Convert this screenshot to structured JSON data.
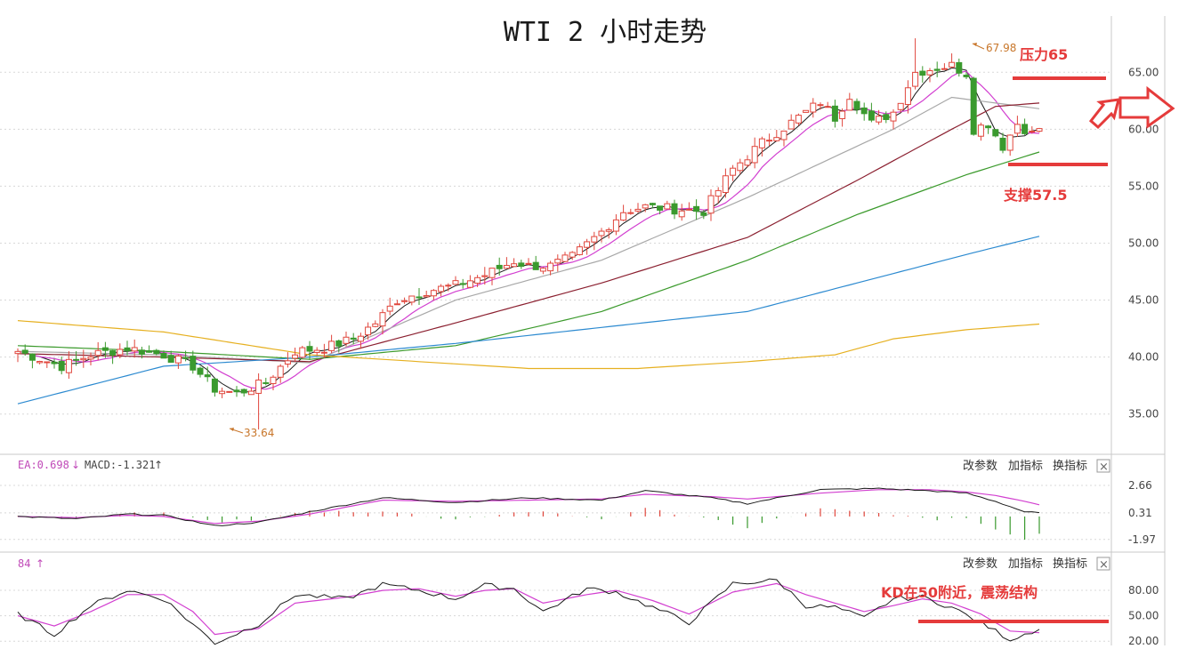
{
  "title": "WTI 2 小时走势",
  "price_panel": {
    "y_ticks": [
      "65.00",
      "60.00",
      "55.00",
      "50.00",
      "45.00",
      "40.00",
      "35.00"
    ],
    "y_tick_values": [
      65,
      60,
      55,
      50,
      45,
      40,
      35
    ],
    "y_range": [
      31.7,
      69.0
    ],
    "high_label": "67.98",
    "low_label": "33.64",
    "annotations": {
      "resistance": "压力65",
      "support": "支撑57.5"
    },
    "resistance_level": 65,
    "support_level": 57.5
  },
  "macd_panel": {
    "header_left_a": "EA:0.698",
    "header_arrow_down": "↓",
    "header_left_b": "MACD:-1.321",
    "header_arrow_up": "↑",
    "y_ticks": [
      "2.66",
      "0.31",
      "-1.97"
    ],
    "y_tick_values": [
      2.66,
      0.31,
      -1.97
    ],
    "y_range": [
      -2.9,
      3.5
    ]
  },
  "kd_panel": {
    "header_left": "84",
    "header_arrow_up": "↑",
    "y_ticks": [
      "80.00",
      "50.00",
      "20.00"
    ],
    "y_tick_values": [
      80,
      50,
      20
    ],
    "y_range": [
      15,
      100
    ],
    "annotation": "KD在50附近，震荡结构",
    "level": 50
  },
  "panel_tools": {
    "change_params": "改参数",
    "add_indicator": "加指标",
    "switch_indicator": "换指标",
    "close_symbol": "×"
  },
  "colors": {
    "up": "#e0463c",
    "down": "#3a9a2e",
    "annotation": "#e53b3b",
    "ma5": "#1a1a1a",
    "ma10": "#d23fd0",
    "ma20": "#a8a8a8",
    "ma40": "#8b2030",
    "ma60": "#3b9a2c",
    "ma120": "#2c8ad0",
    "ma250": "#e6b020",
    "grid": "#d8d8d8",
    "axis_text": "#444444"
  },
  "chart_data": [
    {
      "type": "candlestick",
      "title": "WTI 2 小时走势",
      "ylim": [
        31.7,
        69.0
      ],
      "y_ticks": [
        35,
        40,
        45,
        50,
        55,
        60,
        65
      ],
      "grid": true,
      "close_anchors": [
        [
          0,
          40.5
        ],
        [
          6,
          39.2
        ],
        [
          10,
          40.2
        ],
        [
          15,
          40.8
        ],
        [
          20,
          40.2
        ],
        [
          24,
          39.2
        ],
        [
          27,
          37.2
        ],
        [
          30,
          36.8
        ],
        [
          34,
          37.8
        ],
        [
          38,
          40.5
        ],
        [
          42,
          40.8
        ],
        [
          46,
          41.6
        ],
        [
          49,
          43.0
        ],
        [
          52,
          45.0
        ],
        [
          56,
          45.8
        ],
        [
          60,
          46.3
        ],
        [
          64,
          47.2
        ],
        [
          68,
          48.4
        ],
        [
          70,
          48.0
        ],
        [
          73,
          48.0
        ],
        [
          76,
          48.8
        ],
        [
          80,
          51.0
        ],
        [
          83,
          52.8
        ],
        [
          86,
          53.2
        ],
        [
          90,
          53.0
        ],
        [
          94,
          52.8
        ],
        [
          98,
          56.5
        ],
        [
          102,
          58.8
        ],
        [
          106,
          60.6
        ],
        [
          110,
          62.4
        ],
        [
          112,
          61.0
        ],
        [
          114,
          63.0
        ],
        [
          117,
          60.5
        ],
        [
          120,
          61.5
        ],
        [
          123,
          65.0
        ],
        [
          126,
          65.4
        ],
        [
          128,
          65.6
        ],
        [
          130,
          64.9
        ],
        [
          131,
          60.0
        ],
        [
          133,
          60.5
        ],
        [
          135,
          58.5
        ],
        [
          137,
          60.5
        ],
        [
          139,
          59.6
        ],
        [
          140,
          60.1
        ]
      ],
      "wick_anchors": {
        "high": [
          [
            123,
            67.98
          ]
        ],
        "low": [
          [
            33,
            33.64
          ]
        ]
      },
      "moving_average_anchors": {
        "ma20": [
          [
            0,
            40.5
          ],
          [
            20,
            40.2
          ],
          [
            40,
            39.5
          ],
          [
            60,
            45.0
          ],
          [
            80,
            48.5
          ],
          [
            100,
            54.0
          ],
          [
            120,
            60.0
          ],
          [
            128,
            62.8
          ],
          [
            140,
            61.8
          ]
        ],
        "ma40": [
          [
            0,
            40.3
          ],
          [
            20,
            40.0
          ],
          [
            40,
            39.6
          ],
          [
            60,
            43.0
          ],
          [
            80,
            46.5
          ],
          [
            100,
            50.5
          ],
          [
            115,
            55.5
          ],
          [
            128,
            60.0
          ],
          [
            134,
            62.0
          ],
          [
            140,
            62.3
          ]
        ],
        "ma60": [
          [
            0,
            41.0
          ],
          [
            20,
            40.5
          ],
          [
            40,
            39.8
          ],
          [
            60,
            41.0
          ],
          [
            80,
            44.0
          ],
          [
            100,
            48.5
          ],
          [
            115,
            52.5
          ],
          [
            130,
            56.0
          ],
          [
            140,
            58.0
          ]
        ],
        "ma120": [
          [
            0,
            35.9
          ],
          [
            20,
            39.2
          ],
          [
            40,
            40.0
          ],
          [
            60,
            41.2
          ],
          [
            80,
            42.6
          ],
          [
            100,
            44.0
          ],
          [
            115,
            46.5
          ],
          [
            130,
            49.0
          ],
          [
            140,
            50.6
          ]
        ],
        "ma250": [
          [
            0,
            43.2
          ],
          [
            20,
            42.2
          ],
          [
            40,
            40.2
          ],
          [
            60,
            39.4
          ],
          [
            70,
            39.0
          ],
          [
            85,
            39.0
          ],
          [
            100,
            39.6
          ],
          [
            112,
            40.2
          ],
          [
            120,
            41.6
          ],
          [
            130,
            42.4
          ],
          [
            140,
            42.9
          ]
        ]
      }
    },
    {
      "type": "line",
      "title": "MACD",
      "ylim": [
        -2.9,
        3.5
      ],
      "y_ticks": [
        2.66,
        0.31,
        -1.97
      ],
      "series_anchors": {
        "dif": [
          [
            0,
            0.0
          ],
          [
            8,
            -0.2
          ],
          [
            15,
            0.2
          ],
          [
            20,
            0.1
          ],
          [
            27,
            -0.8
          ],
          [
            33,
            -0.5
          ],
          [
            40,
            0.4
          ],
          [
            50,
            1.6
          ],
          [
            60,
            1.2
          ],
          [
            70,
            1.6
          ],
          [
            80,
            1.4
          ],
          [
            86,
            2.2
          ],
          [
            95,
            1.6
          ],
          [
            100,
            1.1
          ],
          [
            110,
            2.3
          ],
          [
            118,
            2.4
          ],
          [
            125,
            2.2
          ],
          [
            130,
            2.0
          ],
          [
            134,
            1.3
          ],
          [
            138,
            0.4
          ],
          [
            140,
            0.3
          ]
        ],
        "dea": [
          [
            0,
            0.0
          ],
          [
            8,
            -0.1
          ],
          [
            15,
            0.1
          ],
          [
            20,
            0.0
          ],
          [
            27,
            -0.6
          ],
          [
            33,
            -0.4
          ],
          [
            40,
            0.2
          ],
          [
            50,
            1.4
          ],
          [
            60,
            1.3
          ],
          [
            70,
            1.4
          ],
          [
            80,
            1.5
          ],
          [
            86,
            1.9
          ],
          [
            95,
            1.7
          ],
          [
            100,
            1.5
          ],
          [
            110,
            2.0
          ],
          [
            118,
            2.3
          ],
          [
            125,
            2.3
          ],
          [
            130,
            2.1
          ],
          [
            134,
            1.8
          ],
          [
            138,
            1.3
          ],
          [
            140,
            1.0
          ]
        ]
      }
    },
    {
      "type": "line",
      "title": "KD",
      "ylim": [
        15,
        100
      ],
      "y_ticks": [
        80,
        50,
        20
      ],
      "series_anchors": {
        "k": [
          [
            0,
            52
          ],
          [
            5,
            28
          ],
          [
            10,
            62
          ],
          [
            15,
            80
          ],
          [
            20,
            70
          ],
          [
            24,
            40
          ],
          [
            27,
            18
          ],
          [
            33,
            40
          ],
          [
            38,
            75
          ],
          [
            45,
            70
          ],
          [
            50,
            87
          ],
          [
            55,
            80
          ],
          [
            60,
            70
          ],
          [
            64,
            86
          ],
          [
            68,
            82
          ],
          [
            72,
            55
          ],
          [
            78,
            82
          ],
          [
            82,
            78
          ],
          [
            87,
            60
          ],
          [
            92,
            42
          ],
          [
            98,
            88
          ],
          [
            104,
            92
          ],
          [
            108,
            62
          ],
          [
            112,
            60
          ],
          [
            116,
            47
          ],
          [
            120,
            70
          ],
          [
            124,
            72
          ],
          [
            128,
            60
          ],
          [
            132,
            42
          ],
          [
            136,
            22
          ],
          [
            140,
            35
          ]
        ],
        "d": [
          [
            0,
            50
          ],
          [
            5,
            38
          ],
          [
            10,
            55
          ],
          [
            15,
            75
          ],
          [
            20,
            75
          ],
          [
            24,
            55
          ],
          [
            27,
            28
          ],
          [
            33,
            35
          ],
          [
            38,
            65
          ],
          [
            45,
            72
          ],
          [
            50,
            80
          ],
          [
            55,
            82
          ],
          [
            60,
            73
          ],
          [
            64,
            80
          ],
          [
            68,
            82
          ],
          [
            72,
            65
          ],
          [
            78,
            75
          ],
          [
            82,
            80
          ],
          [
            87,
            68
          ],
          [
            92,
            52
          ],
          [
            98,
            78
          ],
          [
            104,
            88
          ],
          [
            108,
            75
          ],
          [
            112,
            65
          ],
          [
            116,
            55
          ],
          [
            120,
            62
          ],
          [
            124,
            70
          ],
          [
            128,
            65
          ],
          [
            132,
            52
          ],
          [
            136,
            32
          ],
          [
            140,
            30
          ]
        ]
      }
    }
  ]
}
